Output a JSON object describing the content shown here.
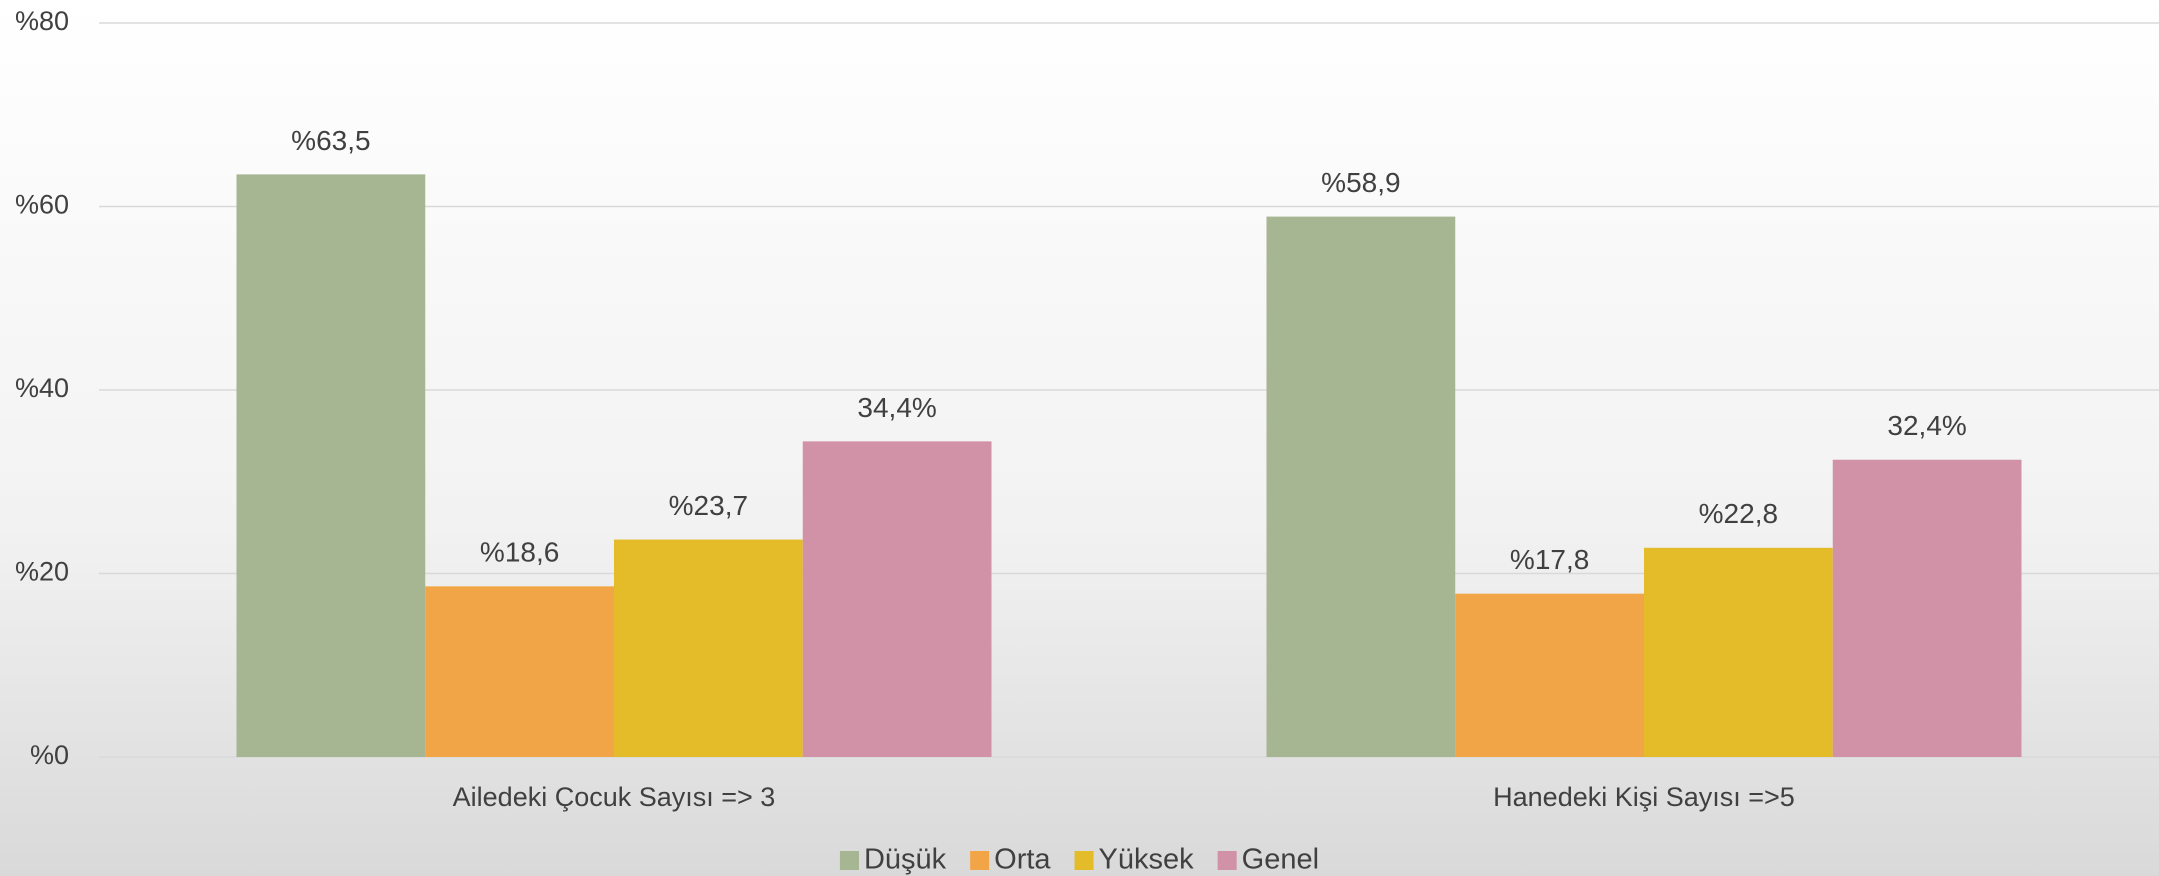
{
  "chart_data": {
    "type": "bar",
    "categories": [
      "Ailedeki Çocuk Sayısı => 3",
      "Hanedeki Kişi Sayısı =>5"
    ],
    "series": [
      {
        "name": "Düşük",
        "color": "#a6b592",
        "values": [
          63.5,
          58.9
        ],
        "value_labels": [
          "%63,5",
          "%58,9"
        ]
      },
      {
        "name": "Orta",
        "color": "#f2a546",
        "values": [
          18.6,
          17.8
        ],
        "value_labels": [
          "%18,6",
          "%17,8"
        ]
      },
      {
        "name": "Yüksek",
        "color": "#e4bc2a",
        "values": [
          23.7,
          22.8
        ],
        "value_labels": [
          "%23,7",
          "%22,8"
        ]
      },
      {
        "name": "Genel",
        "color": "#d191a6",
        "values": [
          34.4,
          32.4
        ],
        "value_labels": [
          "34,4%",
          "32,4%"
        ]
      }
    ],
    "ylim": [
      0,
      80
    ],
    "yticks": [
      {
        "value": 0,
        "label": "%0"
      },
      {
        "value": 20,
        "label": "%20"
      },
      {
        "value": 40,
        "label": "%40"
      },
      {
        "value": 60,
        "label": "%60"
      },
      {
        "value": 80,
        "label": "%80"
      }
    ],
    "grid": true,
    "legend": "bottom"
  }
}
